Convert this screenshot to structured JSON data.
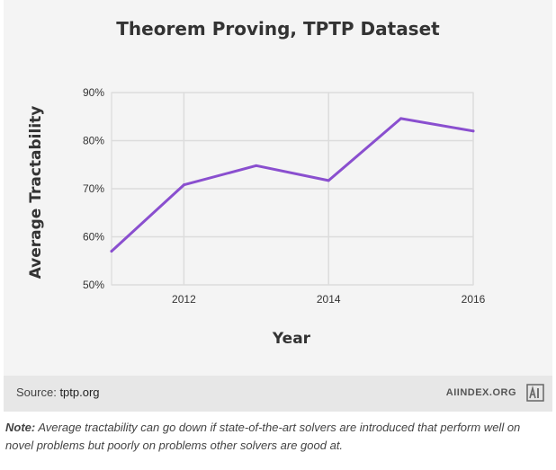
{
  "chart_data": {
    "type": "line",
    "title": "Theorem Proving, TPTP Dataset",
    "xlabel": "Year",
    "ylabel": "Average Tractability",
    "x": [
      2011,
      2012,
      2013,
      2014,
      2015,
      2016
    ],
    "series": [
      {
        "values": [
          57,
          70.8,
          74.8,
          71.7,
          84.6,
          82.0
        ]
      }
    ],
    "xlim": [
      2011,
      2016
    ],
    "ylim": [
      50,
      90
    ],
    "x_ticks": [
      2012,
      2014,
      2016
    ],
    "x_tick_labels": [
      "2012",
      "2014",
      "2016"
    ],
    "y_ticks": [
      50,
      60,
      70,
      80,
      90
    ],
    "y_tick_labels": [
      "50%",
      "60%",
      "70%",
      "80%",
      "90%"
    ],
    "grid": true,
    "line_color": "#8a4fcf"
  },
  "footer": {
    "source_label": "Source:",
    "source_value": "tptp.org",
    "brand": "AIINDEX.ORG",
    "logo_text": "AI"
  },
  "note": {
    "label": "Note:",
    "text": "Average tractability can go down if state-of-the-art solvers are introduced that perform well on novel problems but poorly on problems other solvers are good at."
  }
}
